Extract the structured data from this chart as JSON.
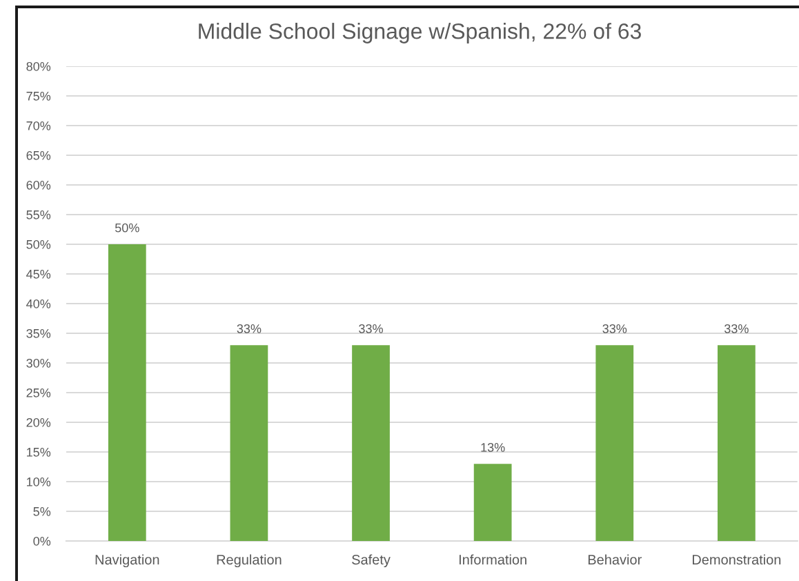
{
  "chart_data": {
    "type": "bar",
    "title": "Middle School Signage w/Spanish, 22% of 63",
    "categories": [
      "Navigation",
      "Regulation",
      "Safety",
      "Information",
      "Behavior",
      "Demonstration"
    ],
    "values": [
      50,
      33,
      33,
      13,
      33,
      33
    ],
    "color": "#70ad47",
    "value_labels": [
      "50%",
      "33%",
      "33%",
      "13%",
      "33%",
      "33%"
    ],
    "ylim": [
      0,
      80
    ],
    "yticks": [
      {
        "value": 0,
        "label": "0%"
      },
      {
        "value": 5,
        "label": "5%"
      },
      {
        "value": 10,
        "label": "10%"
      },
      {
        "value": 15,
        "label": "15%"
      },
      {
        "value": 20,
        "label": "20%"
      },
      {
        "value": 25,
        "label": "25%"
      },
      {
        "value": 30,
        "label": "30%"
      },
      {
        "value": 35,
        "label": "35%"
      },
      {
        "value": 40,
        "label": "40%"
      },
      {
        "value": 45,
        "label": "45%"
      },
      {
        "value": 50,
        "label": "50%"
      },
      {
        "value": 55,
        "label": "55%"
      },
      {
        "value": 60,
        "label": "60%"
      },
      {
        "value": 65,
        "label": "65%"
      },
      {
        "value": 70,
        "label": "70%"
      },
      {
        "value": 75,
        "label": "75%"
      },
      {
        "value": 80,
        "label": "80%"
      }
    ],
    "grid": "y"
  }
}
